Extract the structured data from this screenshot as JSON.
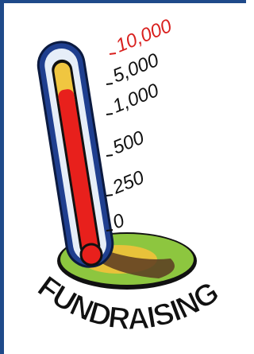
{
  "scale_labels": [
    "10,000",
    "5,000",
    "1,000",
    "500",
    "250",
    "0"
  ],
  "banner": "FUNDRAISING"
}
